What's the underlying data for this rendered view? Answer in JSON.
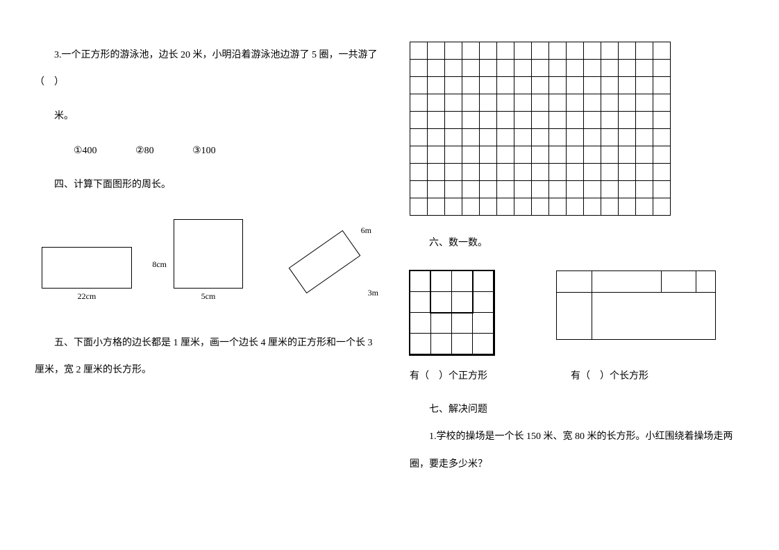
{
  "left": {
    "q3": "3.一个正方形的游泳池，边长 20 米，小明沿着游泳池边游了 5 圈，一共游了（　）",
    "unit": "米。",
    "options": {
      "a": "①400",
      "b": "②80",
      "c": "③100"
    },
    "sec4_title": "四、计算下面图形的周长。",
    "rect1_h": "8cm",
    "rect1_w": "22cm",
    "sq1_w": "5cm",
    "tilt_a": "6m",
    "tilt_b": "3m",
    "sec5": "五、下面小方格的边长都是 1 厘米，画一个边长 4 厘米的正方形和一个长 3 厘米，宽 2 厘米的长方形。"
  },
  "right": {
    "grid": {
      "rows": 10,
      "cols": 15
    },
    "sec6_title": "六、数一数。",
    "label_sq": "有（　）个正方形",
    "label_rect": "有（　）个长方形",
    "sec7_title": "七、解决问题",
    "q7_1": "1.学校的操场是一个长 150 米、宽 80 米的长方形。小红围绕着操场走两圈，要走多少米？"
  },
  "style": {
    "font_family": "SimSun",
    "base_fontsize": 14,
    "label_fontsize": 12,
    "line_color": "#000000",
    "background": "#ffffff"
  }
}
